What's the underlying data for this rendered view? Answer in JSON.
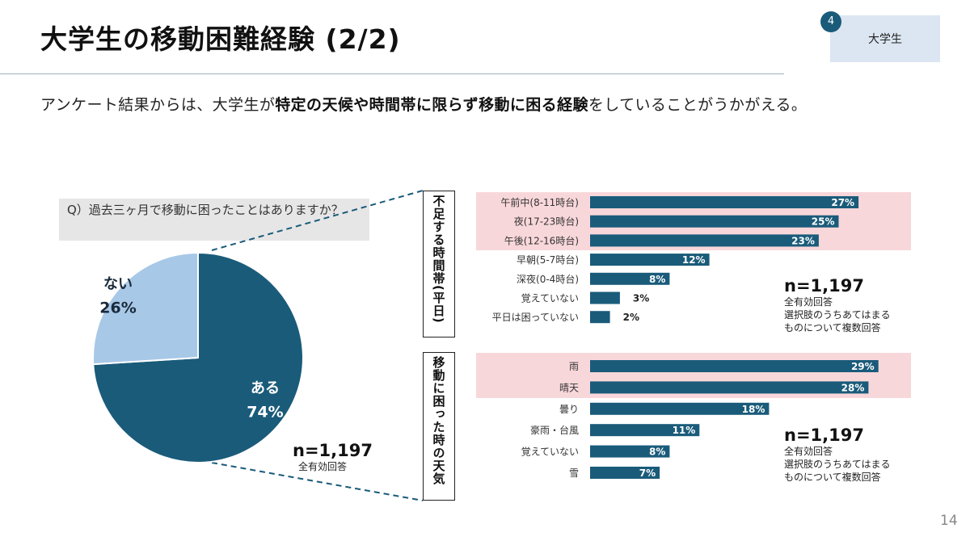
{
  "header": {
    "title": "大学生の移動困難経験 (2/2)",
    "badge_num": "4",
    "badge_label": "大学生"
  },
  "lead": {
    "part1": "アンケート結果からは、大学生が",
    "bold": "特定の天候や時間帯に限らず移動に困る経験",
    "part2": "をしていることがうかがえる。"
  },
  "question": "Q）過去三ヶ月で移動に困ったことはありますか？",
  "pie_note": {
    "n": "n=1,197",
    "sub": "全有効回答"
  },
  "time_note": {
    "n": "n=1,197",
    "sub1": "全有効回答",
    "sub2": "選択肢のうちあてはまる",
    "sub3": "ものについて複数回答"
  },
  "weather_note": {
    "n": "n=1,197",
    "sub1": "全有効回答",
    "sub2": "選択肢のうちあてはまる",
    "sub3": "ものについて複数回答"
  },
  "side_labels": {
    "time": "不足する時間帯(平日)",
    "weather": "移動に困った時の天気"
  },
  "page_number": "14",
  "colors": {
    "dark": "#1a5b7a",
    "light": "#a8c8e8",
    "highlight": "#f8d7da",
    "badge_bg": "#dce6f2"
  },
  "chart_data": [
    {
      "type": "pie",
      "slices": [
        {
          "label": "ある",
          "value": 74,
          "text": "74%",
          "color": "#1a5b7a"
        },
        {
          "label": "ない",
          "value": 26,
          "text": "26%",
          "color": "#a8c8e8"
        }
      ]
    },
    {
      "type": "bar",
      "orientation": "horizontal",
      "categories": [
        "午前中(8-11時台)",
        "夜(17-23時台)",
        "午後(12-16時台)",
        "早朝(5-7時台)",
        "深夜(0-4時台)",
        "覚えていない",
        "平日は困っていない"
      ],
      "values": [
        27,
        25,
        23,
        12,
        8,
        3,
        2
      ],
      "labels": [
        "27%",
        "25%",
        "23%",
        "12%",
        "8%",
        "3%",
        "2%"
      ],
      "highlighted": [
        0,
        1,
        2
      ]
    },
    {
      "type": "bar",
      "orientation": "horizontal",
      "categories": [
        "雨",
        "晴天",
        "曇り",
        "豪雨・台風",
        "覚えていない",
        "雪"
      ],
      "values": [
        29,
        28,
        18,
        11,
        8,
        7
      ],
      "labels": [
        "29%",
        "28%",
        "18%",
        "11%",
        "8%",
        "7%"
      ],
      "highlighted": [
        0,
        1
      ]
    }
  ]
}
